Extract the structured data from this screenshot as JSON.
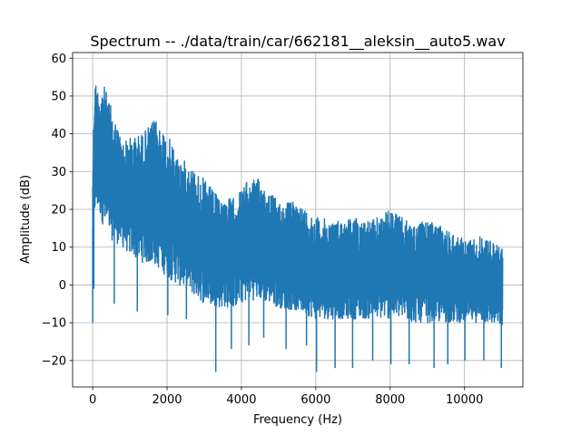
{
  "chart_data": {
    "type": "line",
    "title": "Spectrum -- ./data/train/car/662181__aleksin__auto5.wav",
    "xlabel": "Frequency (Hz)",
    "ylabel": "Amplitude (dB)",
    "xlim": [
      -540,
      11570
    ],
    "ylim": [
      -27,
      61.5
    ],
    "xticks": [
      0,
      2000,
      4000,
      6000,
      8000,
      10000
    ],
    "xtick_labels": [
      "0",
      "2000",
      "4000",
      "6000",
      "8000",
      "10000"
    ],
    "yticks": [
      -20,
      -10,
      0,
      10,
      20,
      30,
      40,
      50,
      60
    ],
    "ytick_labels": [
      "−20",
      "−10",
      "0",
      "10",
      "20",
      "30",
      "40",
      "50",
      "60"
    ],
    "grid": true,
    "line_color": "#1f77b4",
    "envelope": {
      "x_hz": [
        0,
        50,
        150,
        300,
        500,
        800,
        1000,
        1300,
        1700,
        2000,
        2300,
        2600,
        3000,
        3400,
        3800,
        4200,
        4500,
        5000,
        5500,
        6000,
        6500,
        7000,
        7500,
        8000,
        8300,
        8600,
        9000,
        9500,
        10000,
        10500,
        11000,
        11025
      ],
      "upper": [
        30,
        55,
        52,
        53,
        47,
        38,
        39,
        40,
        44,
        40,
        34,
        32,
        28,
        23,
        23,
        28,
        28,
        22,
        22,
        18,
        17,
        18,
        17,
        20,
        18,
        16,
        17,
        15,
        12,
        13,
        10,
        10
      ],
      "lower": [
        12,
        18,
        20,
        15,
        12,
        10,
        8,
        6,
        5,
        2,
        0,
        -2,
        -5,
        -6,
        -6,
        -4,
        -4,
        -6,
        -7,
        -9,
        -9,
        -9,
        -9,
        -9,
        -9,
        -10,
        -10,
        -10,
        -10,
        -10,
        -11,
        -12
      ]
    },
    "dips": [
      {
        "x_hz": 0,
        "y_db": -10
      },
      {
        "x_hz": 30,
        "y_db": -1
      },
      {
        "x_hz": 580,
        "y_db": -5
      },
      {
        "x_hz": 1200,
        "y_db": -7
      },
      {
        "x_hz": 2020,
        "y_db": -8
      },
      {
        "x_hz": 2520,
        "y_db": -9
      },
      {
        "x_hz": 3310,
        "y_db": -23
      },
      {
        "x_hz": 3730,
        "y_db": -17
      },
      {
        "x_hz": 4200,
        "y_db": -16
      },
      {
        "x_hz": 4600,
        "y_db": -14
      },
      {
        "x_hz": 5200,
        "y_db": -17
      },
      {
        "x_hz": 5750,
        "y_db": -16
      },
      {
        "x_hz": 6020,
        "y_db": -23
      },
      {
        "x_hz": 6520,
        "y_db": -22
      },
      {
        "x_hz": 6990,
        "y_db": -22
      },
      {
        "x_hz": 7530,
        "y_db": -20
      },
      {
        "x_hz": 8020,
        "y_db": -21
      },
      {
        "x_hz": 8510,
        "y_db": -21
      },
      {
        "x_hz": 9180,
        "y_db": -22
      },
      {
        "x_hz": 9550,
        "y_db": -21
      },
      {
        "x_hz": 10010,
        "y_db": -20
      },
      {
        "x_hz": 10520,
        "y_db": -20
      },
      {
        "x_hz": 10990,
        "y_db": -22
      }
    ]
  }
}
